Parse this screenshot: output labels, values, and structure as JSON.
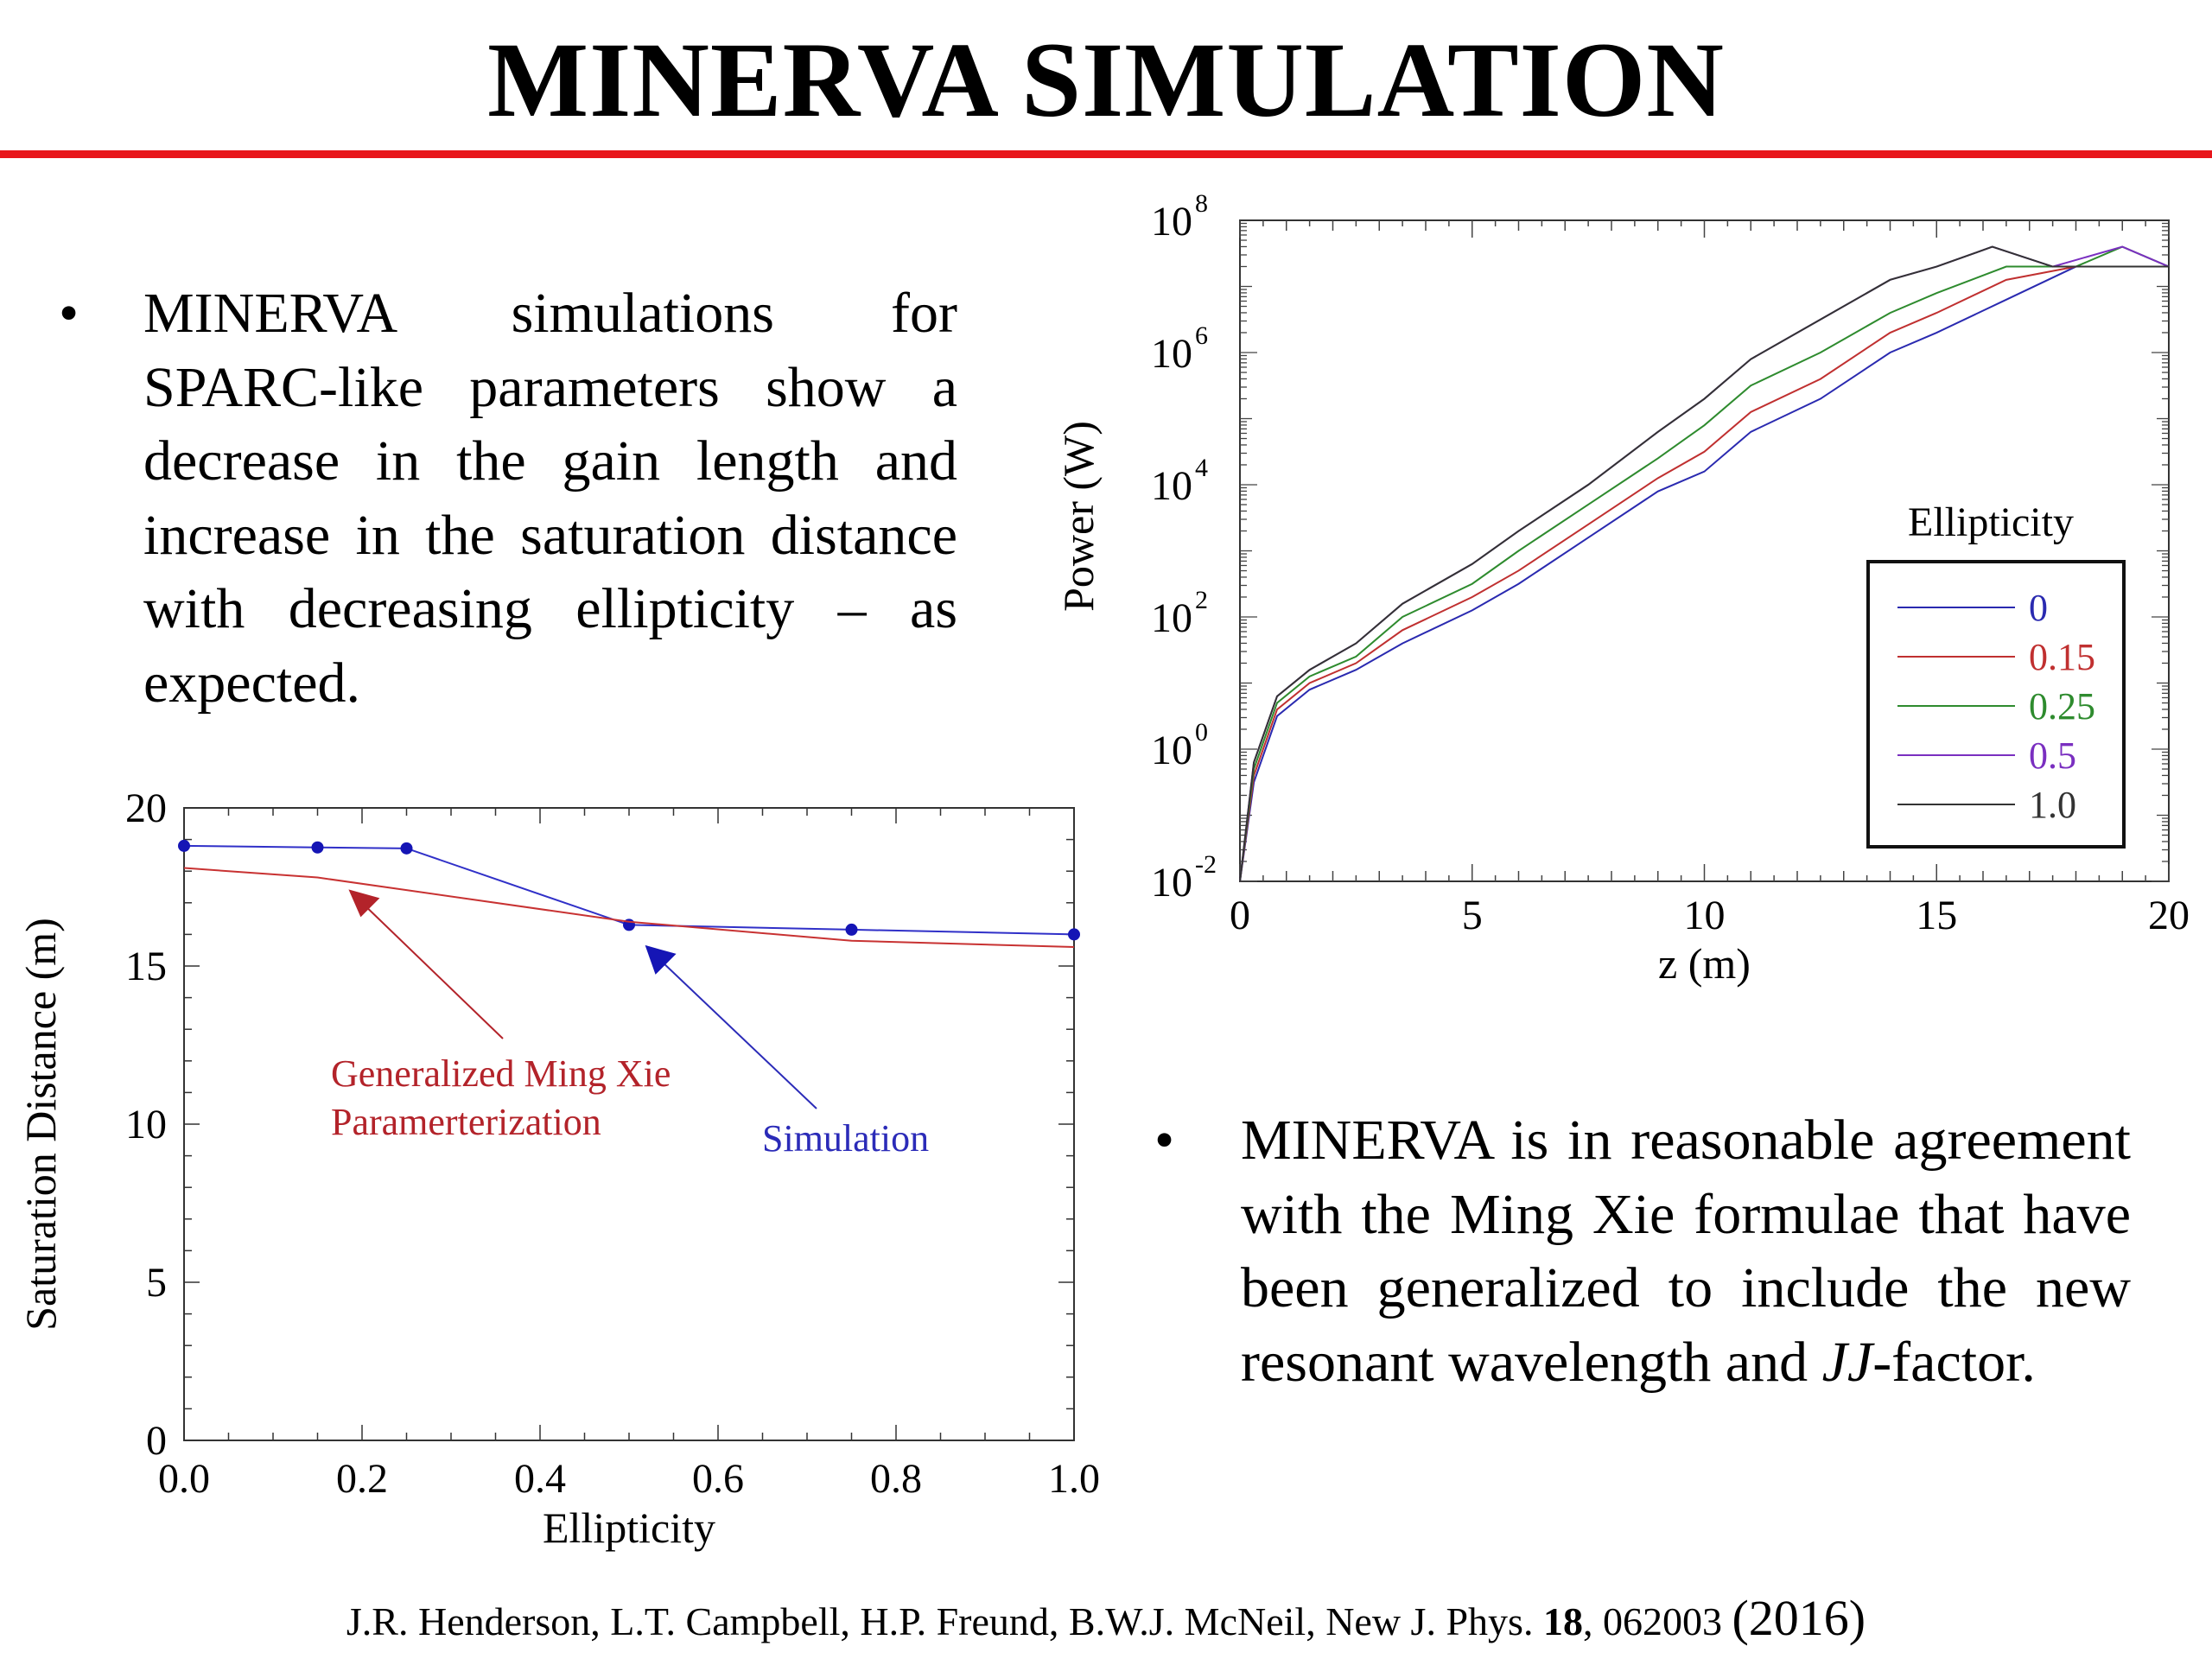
{
  "slide": {
    "title": "MINERVA SIMULATION",
    "bullets": [
      {
        "marker": "•",
        "text": "MINERVA simulations for SPARC-like parameters show a decrease in the gain length and increase in the saturation distance with decreasing ellipticity – as expected."
      },
      {
        "marker": "•",
        "text_before": "MINERVA is in reasonable agreement with the Ming Xie formulae that have been generalized to include the new resonant wavelength and ",
        "text_italic": "JJ",
        "text_after": "-factor."
      }
    ],
    "citation": {
      "authors": "J.R. Henderson, L.T. Campbell, H.P. Freund, B.W.J. McNeil, New J. Phys. ",
      "volume": "18",
      "pages": ", 062003 ",
      "year": "(2016)"
    }
  },
  "chart_data": [
    {
      "type": "line",
      "xlabel": "Ellipticity",
      "ylabel": "Saturation Distance (m)",
      "xlim": [
        0,
        1
      ],
      "ylim": [
        0,
        20
      ],
      "xticks": [
        0,
        0.2,
        0.4,
        0.6,
        0.8,
        1.0
      ],
      "xtick_labels": [
        "0.0",
        "0.2",
        "0.4",
        "0.6",
        "0.8",
        "1.0"
      ],
      "yticks": [
        0,
        5,
        10,
        15,
        20
      ],
      "ytick_labels": [
        "0",
        "5",
        "10",
        "15",
        "20"
      ],
      "series": [
        {
          "color": "#3030c8",
          "markers": true,
          "x": [
            0,
            0.15,
            0.25,
            0.5,
            0.75,
            1.0
          ],
          "y": [
            18.8,
            18.75,
            18.72,
            16.3,
            16.15,
            16.0
          ]
        },
        {
          "color": "#c83232",
          "markers": false,
          "x": [
            0,
            0.15,
            0.25,
            0.5,
            0.75,
            1.0
          ],
          "y": [
            18.1,
            17.8,
            17.4,
            16.4,
            15.8,
            15.6
          ]
        }
      ],
      "annotations": [
        {
          "lines": [
            "Generalized Ming Xie",
            "Paramerterization"
          ],
          "color": "#b3232a",
          "points_to": [
            0.18,
            17.75
          ]
        },
        {
          "lines": [
            "Simulation"
          ],
          "color": "#2b2bb8",
          "points_to": [
            0.52,
            16.15
          ]
        }
      ]
    },
    {
      "type": "line",
      "xlabel": "z (m)",
      "ylabel": "Power (W)",
      "xlim": [
        0,
        20
      ],
      "ylim_log10": [
        -2,
        8
      ],
      "log_y": true,
      "xticks": [
        0,
        5,
        10,
        15,
        20
      ],
      "xtick_labels": [
        "0",
        "5",
        "10",
        "15",
        "20"
      ],
      "yticks_exp": [
        -2,
        0,
        2,
        4,
        6,
        8
      ],
      "ytick_labels": [
        "10",
        "10",
        "10",
        "10",
        "10",
        "10"
      ],
      "ytick_exponents": [
        "-2",
        "0",
        "2",
        "4",
        "6",
        "8"
      ],
      "legend": {
        "title": "Ellipticity",
        "placement": "right"
      },
      "series": [
        {
          "name": "0",
          "color": "#2a2ab0",
          "x": [
            0,
            0.3,
            0.8,
            1.5,
            2.5,
            3.5,
            5,
            6,
            7.5,
            9,
            10,
            11,
            12.5,
            14,
            15,
            16.5,
            18,
            19,
            20
          ],
          "log10_y": [
            -2,
            -0.5,
            0.5,
            0.9,
            1.2,
            1.6,
            2.1,
            2.5,
            3.2,
            3.9,
            4.2,
            4.8,
            5.3,
            6.0,
            6.3,
            6.8,
            7.3,
            7.3,
            7.3
          ]
        },
        {
          "name": "0.15",
          "color": "#c03030",
          "x": [
            0,
            0.3,
            0.8,
            1.5,
            2.5,
            3.5,
            5,
            6,
            7.5,
            9,
            10,
            11,
            12.5,
            14,
            15,
            16.5,
            18,
            19,
            20
          ],
          "log10_y": [
            -2,
            -0.4,
            0.6,
            1.0,
            1.3,
            1.8,
            2.3,
            2.7,
            3.4,
            4.1,
            4.5,
            5.1,
            5.6,
            6.3,
            6.6,
            7.1,
            7.3,
            7.3,
            7.3
          ]
        },
        {
          "name": "0.25",
          "color": "#2e8b2e",
          "x": [
            0,
            0.3,
            0.8,
            1.5,
            2.5,
            3.5,
            5,
            6,
            7.5,
            9,
            10,
            11,
            12.5,
            14,
            15,
            16.5,
            18,
            19,
            20
          ],
          "log10_y": [
            -2,
            -0.3,
            0.7,
            1.1,
            1.4,
            2.0,
            2.5,
            3.0,
            3.7,
            4.4,
            4.9,
            5.5,
            6.0,
            6.6,
            6.9,
            7.3,
            7.3,
            7.6,
            7.3
          ]
        },
        {
          "name": "0.5",
          "color": "#7a2fc0",
          "x": [
            0,
            0.3,
            0.8,
            1.5,
            2.5,
            3.5,
            5,
            6,
            7.5,
            9,
            10,
            11,
            12.5,
            14,
            15,
            16.2,
            17.5,
            19,
            20
          ],
          "log10_y": [
            -2,
            -0.2,
            0.8,
            1.2,
            1.6,
            2.2,
            2.8,
            3.3,
            4.0,
            4.8,
            5.3,
            5.9,
            6.5,
            7.1,
            7.3,
            7.6,
            7.3,
            7.6,
            7.3
          ]
        },
        {
          "name": "1.0",
          "color": "#333333",
          "x": [
            0,
            0.3,
            0.8,
            1.5,
            2.5,
            3.5,
            5,
            6,
            7.5,
            9,
            10,
            11,
            12.5,
            14,
            15,
            16.2,
            17.5,
            19,
            20
          ],
          "log10_y": [
            -2,
            -0.2,
            0.8,
            1.2,
            1.6,
            2.2,
            2.8,
            3.3,
            4.0,
            4.8,
            5.3,
            5.9,
            6.5,
            7.1,
            7.3,
            7.6,
            7.3,
            7.3,
            7.3
          ]
        }
      ]
    }
  ]
}
